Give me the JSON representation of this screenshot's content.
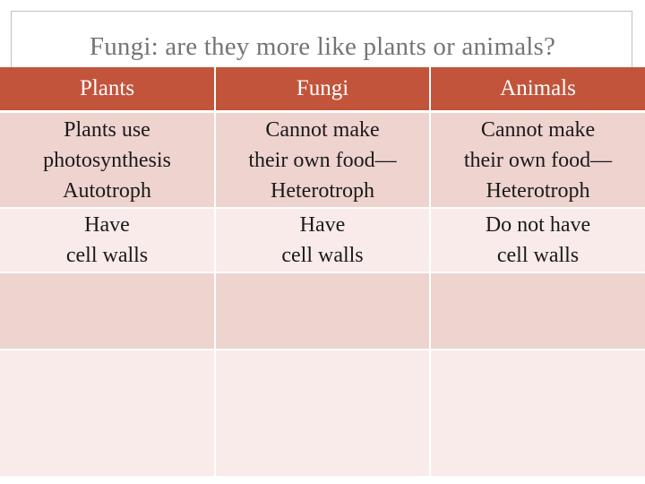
{
  "title": "Fungi: are they more like plants or animals?",
  "table": {
    "headers": [
      "Plants",
      "Fungi",
      "Animals"
    ],
    "rows": [
      {
        "cells": [
          [
            "Plants use",
            "photosynthesis",
            "Autotroph"
          ],
          [
            "Cannot make",
            "their own food—",
            "Heterotroph"
          ],
          [
            "Cannot make",
            "their own food—",
            "Heterotroph"
          ]
        ]
      },
      {
        "cells": [
          [
            "Have",
            "cell walls"
          ],
          [
            "Have",
            "cell walls"
          ],
          [
            "Do not have",
            "cell walls"
          ]
        ]
      },
      {
        "cells": [
          [],
          [],
          []
        ]
      },
      {
        "cells": [
          [],
          [],
          []
        ]
      }
    ]
  },
  "colors": {
    "header": "#c2543b",
    "row_dark": "#eed3cf",
    "row_light": "#f8ebe9",
    "title_text": "#757575"
  }
}
